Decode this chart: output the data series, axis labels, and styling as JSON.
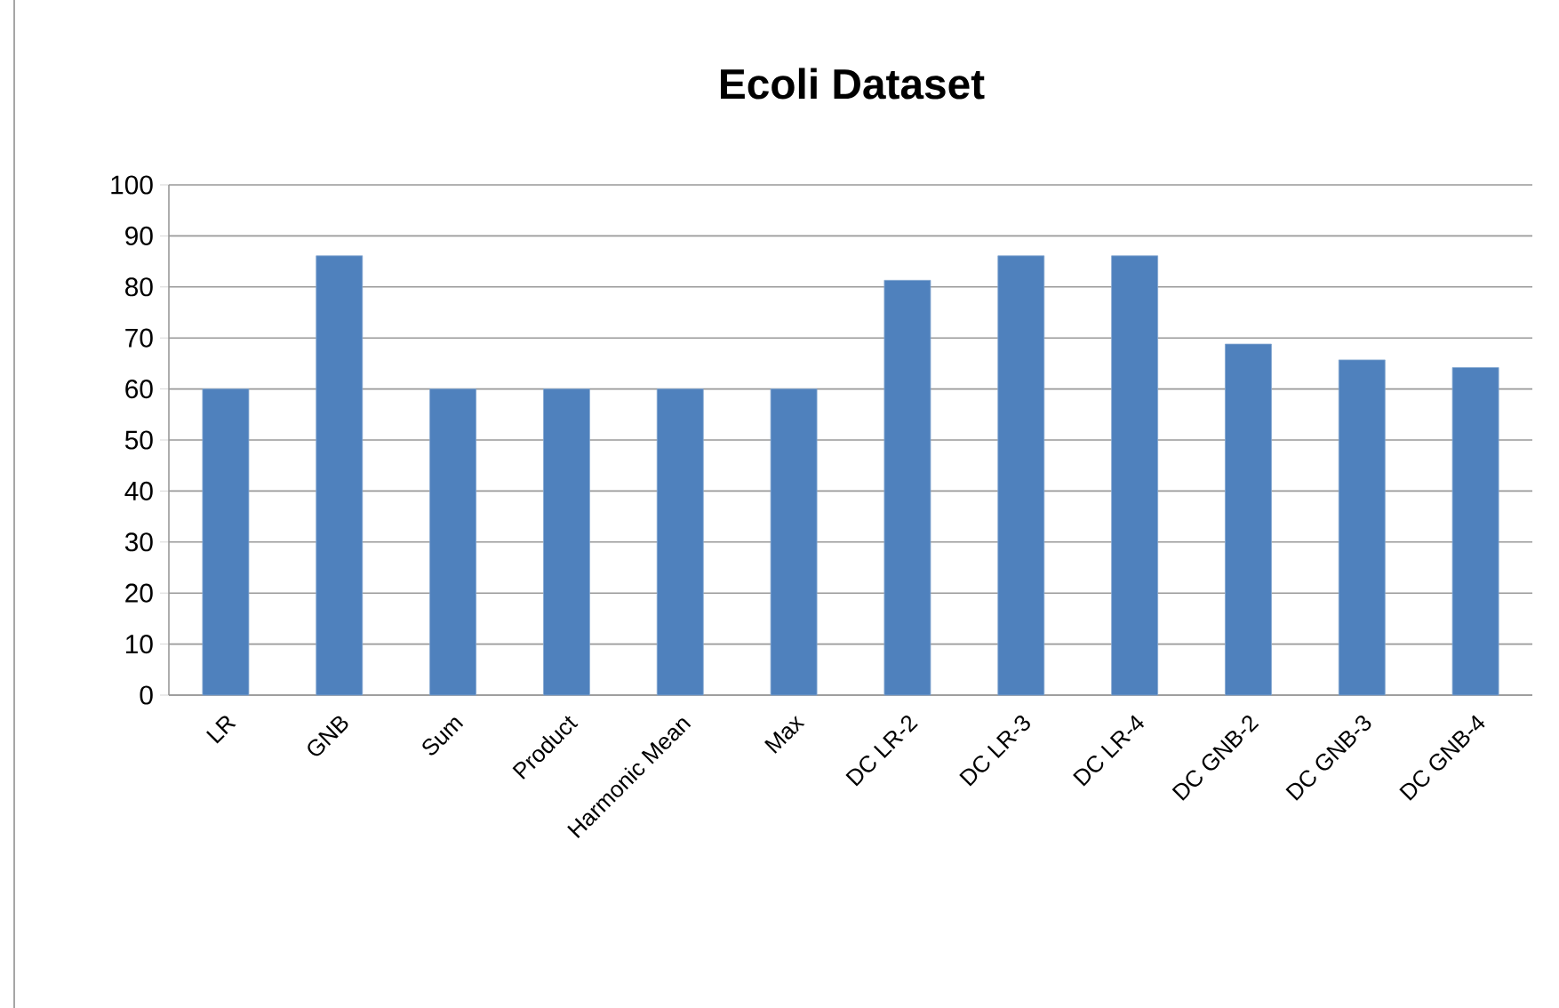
{
  "chart_data": {
    "type": "bar",
    "title": "Ecoli Dataset",
    "categories": [
      "LR",
      "GNB",
      "Sum",
      "Product",
      "Harmonic Mean",
      "Max",
      "DC LR-2",
      "DC LR-3",
      "DC LR-4",
      "DC GNB-2",
      "DC GNB-3",
      "DC GNB-4"
    ],
    "values": [
      60,
      86.1,
      60,
      60,
      60,
      60,
      81.3,
      86.1,
      86.1,
      68.8,
      65.7,
      64.2
    ],
    "color": "#4f81bd",
    "ylim": [
      0,
      100
    ],
    "yticks": [
      0,
      10,
      20,
      30,
      40,
      50,
      60,
      70,
      80,
      90,
      100
    ],
    "grid": "y"
  }
}
